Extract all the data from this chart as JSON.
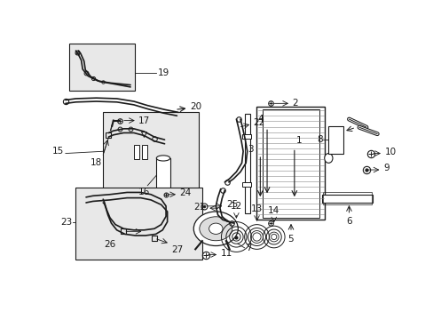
{
  "bg_color": "#ffffff",
  "line_color": "#1a1a1a",
  "box_fill": "#e8e8e8",
  "label_fontsize": 7.5,
  "fig_width": 4.89,
  "fig_height": 3.6,
  "dpi": 100
}
